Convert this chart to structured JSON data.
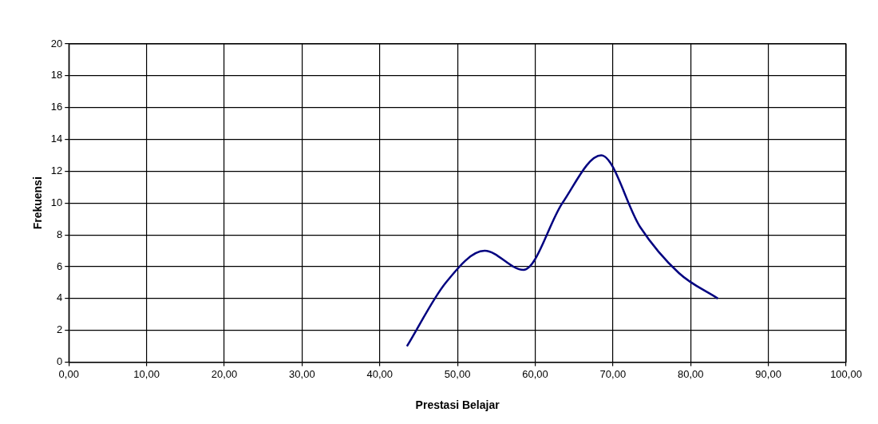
{
  "chart_data": {
    "type": "line",
    "xlabel": "Prestasi Belajar",
    "ylabel": "Frekuensi",
    "x": [
      43.5,
      48.5,
      53.5,
      58.5,
      63.5,
      68.5,
      73.5,
      78.5,
      83.5
    ],
    "series": [
      {
        "color": "#000080",
        "values": [
          1,
          5,
          7,
          5.8,
          10,
          13,
          8.5,
          5.6,
          4
        ]
      }
    ],
    "xlim": [
      0,
      100
    ],
    "xticks": [
      {
        "value": 0,
        "label": "0,00"
      },
      {
        "value": 10,
        "label": "10,00"
      },
      {
        "value": 20,
        "label": "20,00"
      },
      {
        "value": 30,
        "label": "30,00"
      },
      {
        "value": 40,
        "label": "40,00"
      },
      {
        "value": 50,
        "label": "50,00"
      },
      {
        "value": 60,
        "label": "60,00"
      },
      {
        "value": 70,
        "label": "70,00"
      },
      {
        "value": 80,
        "label": "80,00"
      },
      {
        "value": 90,
        "label": "90,00"
      },
      {
        "value": 100,
        "label": "100,00"
      }
    ],
    "ylim": [
      0,
      20
    ],
    "yticks": [
      0,
      2,
      4,
      6,
      8,
      10,
      12,
      14,
      16,
      18,
      20
    ],
    "grid": true,
    "legend": false,
    "marker": "none",
    "line_style": "solid"
  }
}
